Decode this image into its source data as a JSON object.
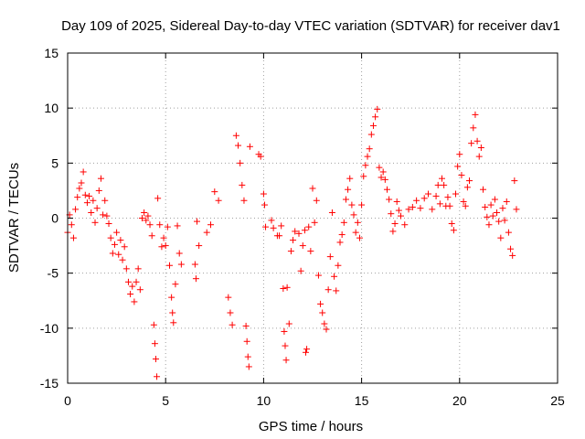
{
  "chart_data": {
    "type": "scatter",
    "title": "Day 109 of 2025, Sidereal Day-to-day VTEC variation (SDTVAR) for receiver dav1",
    "xlabel": "GPS time / hours",
    "ylabel": "SDTVAR / TECUs",
    "xlim": [
      0,
      25
    ],
    "ylim": [
      -15,
      15
    ],
    "xticks": [
      "0",
      "5",
      "10",
      "15",
      "20",
      "25"
    ],
    "yticks": [
      "-15",
      "-10",
      "-5",
      "0",
      "5",
      "10",
      "15"
    ],
    "grid": true,
    "marker": "+",
    "color": "#ff0000",
    "series": [
      {
        "name": "SDTVAR",
        "points": [
          [
            0.0,
            -1.3
          ],
          [
            0.1,
            0.3
          ],
          [
            0.2,
            -0.6
          ],
          [
            0.3,
            -1.8
          ],
          [
            0.4,
            0.8
          ],
          [
            0.5,
            1.9
          ],
          [
            0.6,
            2.7
          ],
          [
            0.7,
            3.2
          ],
          [
            0.8,
            4.2
          ],
          [
            0.9,
            2.1
          ],
          [
            1.0,
            1.4
          ],
          [
            1.1,
            2.0
          ],
          [
            1.2,
            0.5
          ],
          [
            1.3,
            1.6
          ],
          [
            1.4,
            -0.4
          ],
          [
            1.5,
            0.9
          ],
          [
            1.6,
            2.5
          ],
          [
            1.7,
            3.6
          ],
          [
            1.8,
            0.3
          ],
          [
            1.9,
            1.6
          ],
          [
            2.0,
            0.2
          ],
          [
            2.1,
            -0.5
          ],
          [
            2.2,
            -1.8
          ],
          [
            2.3,
            -3.2
          ],
          [
            2.4,
            -2.4
          ],
          [
            2.5,
            -1.3
          ],
          [
            2.6,
            -3.3
          ],
          [
            2.7,
            -2.0
          ],
          [
            2.8,
            -3.8
          ],
          [
            2.9,
            -2.6
          ],
          [
            3.0,
            -4.6
          ],
          [
            3.1,
            -5.8
          ],
          [
            3.2,
            -6.9
          ],
          [
            3.3,
            -6.2
          ],
          [
            3.4,
            -7.6
          ],
          [
            3.5,
            -5.8
          ],
          [
            3.6,
            -4.6
          ],
          [
            3.7,
            -6.5
          ],
          [
            3.8,
            0.0
          ],
          [
            3.9,
            0.5
          ],
          [
            4.0,
            -0.2
          ],
          [
            4.1,
            0.2
          ],
          [
            4.2,
            -0.6
          ],
          [
            4.3,
            -1.6
          ],
          [
            4.4,
            -9.7
          ],
          [
            4.45,
            -11.4
          ],
          [
            4.5,
            -12.8
          ],
          [
            4.55,
            -14.4
          ],
          [
            4.6,
            1.8
          ],
          [
            4.7,
            -0.6
          ],
          [
            4.8,
            -2.6
          ],
          [
            4.9,
            -1.8
          ],
          [
            5.0,
            -2.5
          ],
          [
            5.1,
            -0.8
          ],
          [
            5.2,
            -4.3
          ],
          [
            5.3,
            -7.2
          ],
          [
            5.35,
            -8.6
          ],
          [
            5.4,
            -9.5
          ],
          [
            5.5,
            -6.0
          ],
          [
            5.6,
            -0.7
          ],
          [
            5.7,
            -3.2
          ],
          [
            5.8,
            -4.2
          ],
          [
            6.5,
            -4.2
          ],
          [
            6.55,
            -5.5
          ],
          [
            6.6,
            -0.3
          ],
          [
            6.7,
            -2.5
          ],
          [
            7.1,
            -1.3
          ],
          [
            7.3,
            -0.6
          ],
          [
            7.5,
            2.4
          ],
          [
            7.7,
            1.6
          ],
          [
            8.2,
            -7.2
          ],
          [
            8.3,
            -8.6
          ],
          [
            8.4,
            -9.7
          ],
          [
            8.6,
            7.5
          ],
          [
            8.7,
            6.6
          ],
          [
            8.8,
            5.0
          ],
          [
            8.9,
            3.0
          ],
          [
            9.0,
            1.6
          ],
          [
            9.1,
            -9.8
          ],
          [
            9.15,
            -11.2
          ],
          [
            9.2,
            -12.6
          ],
          [
            9.25,
            -13.5
          ],
          [
            9.3,
            6.5
          ],
          [
            9.75,
            5.8
          ],
          [
            9.85,
            5.6
          ],
          [
            10.0,
            2.2
          ],
          [
            10.05,
            1.2
          ],
          [
            10.1,
            -0.8
          ],
          [
            10.4,
            -0.2
          ],
          [
            10.5,
            -0.9
          ],
          [
            10.7,
            -1.6
          ],
          [
            10.8,
            -1.6
          ],
          [
            10.9,
            -0.7
          ],
          [
            11.0,
            -6.4
          ],
          [
            11.05,
            -10.3
          ],
          [
            11.1,
            -11.6
          ],
          [
            11.15,
            -12.9
          ],
          [
            11.2,
            -6.3
          ],
          [
            11.3,
            -9.6
          ],
          [
            11.4,
            -3.0
          ],
          [
            11.5,
            -2.0
          ],
          [
            11.6,
            -1.2
          ],
          [
            11.8,
            -1.4
          ],
          [
            11.9,
            -4.8
          ],
          [
            12.0,
            -2.5
          ],
          [
            12.1,
            -1.1
          ],
          [
            12.15,
            -12.2
          ],
          [
            12.2,
            -11.9
          ],
          [
            12.3,
            -0.8
          ],
          [
            12.4,
            -3.0
          ],
          [
            12.5,
            2.7
          ],
          [
            12.6,
            -0.4
          ],
          [
            12.7,
            1.6
          ],
          [
            12.8,
            -5.2
          ],
          [
            12.9,
            -7.8
          ],
          [
            13.0,
            -8.6
          ],
          [
            13.1,
            -9.6
          ],
          [
            13.2,
            -10.1
          ],
          [
            13.3,
            -6.5
          ],
          [
            13.4,
            -3.5
          ],
          [
            13.5,
            0.5
          ],
          [
            13.6,
            -5.3
          ],
          [
            13.7,
            -6.6
          ],
          [
            13.8,
            -4.3
          ],
          [
            13.9,
            -2.2
          ],
          [
            14.0,
            -1.5
          ],
          [
            14.1,
            -0.4
          ],
          [
            14.2,
            1.7
          ],
          [
            14.3,
            2.6
          ],
          [
            14.4,
            3.6
          ],
          [
            14.5,
            1.2
          ],
          [
            14.6,
            0.3
          ],
          [
            14.7,
            -1.3
          ],
          [
            14.8,
            -0.4
          ],
          [
            14.9,
            -1.8
          ],
          [
            15.0,
            1.2
          ],
          [
            15.1,
            3.8
          ],
          [
            15.2,
            4.8
          ],
          [
            15.3,
            5.6
          ],
          [
            15.4,
            6.3
          ],
          [
            15.5,
            7.6
          ],
          [
            15.6,
            8.4
          ],
          [
            15.7,
            9.2
          ],
          [
            15.8,
            9.9
          ],
          [
            15.9,
            4.6
          ],
          [
            16.0,
            3.7
          ],
          [
            16.1,
            4.2
          ],
          [
            16.2,
            3.5
          ],
          [
            16.3,
            2.6
          ],
          [
            16.4,
            1.7
          ],
          [
            16.5,
            0.4
          ],
          [
            16.6,
            -1.2
          ],
          [
            16.7,
            -0.5
          ],
          [
            16.8,
            1.5
          ],
          [
            16.9,
            0.7
          ],
          [
            17.0,
            0.2
          ],
          [
            17.2,
            -0.6
          ],
          [
            17.4,
            0.8
          ],
          [
            17.6,
            1.0
          ],
          [
            17.8,
            1.6
          ],
          [
            18.0,
            0.9
          ],
          [
            18.2,
            1.8
          ],
          [
            18.4,
            2.2
          ],
          [
            18.6,
            0.8
          ],
          [
            18.8,
            2.0
          ],
          [
            18.9,
            3.0
          ],
          [
            19.0,
            1.3
          ],
          [
            19.1,
            3.6
          ],
          [
            19.2,
            3.0
          ],
          [
            19.3,
            1.1
          ],
          [
            19.4,
            1.9
          ],
          [
            19.5,
            1.1
          ],
          [
            19.6,
            -0.5
          ],
          [
            19.7,
            -1.1
          ],
          [
            19.8,
            2.2
          ],
          [
            19.9,
            4.7
          ],
          [
            20.0,
            5.8
          ],
          [
            20.1,
            3.9
          ],
          [
            20.2,
            1.5
          ],
          [
            20.3,
            1.1
          ],
          [
            20.4,
            2.8
          ],
          [
            20.5,
            3.4
          ],
          [
            20.6,
            6.8
          ],
          [
            20.7,
            8.2
          ],
          [
            20.8,
            9.4
          ],
          [
            20.9,
            7.0
          ],
          [
            21.0,
            5.6
          ],
          [
            21.1,
            6.4
          ],
          [
            21.2,
            2.6
          ],
          [
            21.3,
            1.0
          ],
          [
            21.4,
            0.1
          ],
          [
            21.5,
            -0.6
          ],
          [
            21.6,
            1.2
          ],
          [
            21.7,
            0.2
          ],
          [
            21.8,
            1.7
          ],
          [
            21.9,
            0.5
          ],
          [
            22.0,
            -0.3
          ],
          [
            22.1,
            -1.8
          ],
          [
            22.2,
            0.9
          ],
          [
            22.3,
            -0.2
          ],
          [
            22.4,
            1.5
          ],
          [
            22.5,
            -1.3
          ],
          [
            22.6,
            -2.8
          ],
          [
            22.7,
            -3.4
          ],
          [
            22.8,
            3.4
          ],
          [
            22.9,
            0.8
          ]
        ]
      }
    ]
  }
}
